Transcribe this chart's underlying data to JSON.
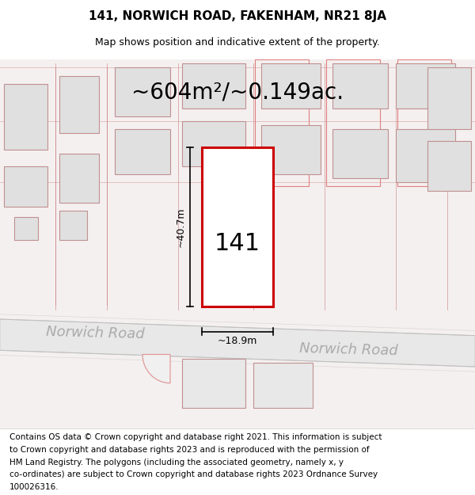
{
  "title_line1": "141, NORWICH ROAD, FAKENHAM, NR21 8JA",
  "title_line2": "Map shows position and indicative extent of the property.",
  "area_text": "~604m²/~0.149ac.",
  "property_number": "141",
  "width_label": "~18.9m",
  "height_label": "~40.7m",
  "road_label1": "Norwich Road",
  "road_label2": "Norwich Road",
  "footer_lines": [
    "Contains OS data © Crown copyright and database right 2021. This information is subject",
    "to Crown copyright and database rights 2023 and is reproduced with the permission of",
    "HM Land Registry. The polygons (including the associated geometry, namely x, y",
    "co-ordinates) are subject to Crown copyright and database rights 2023 Ordnance Survey",
    "100026316."
  ],
  "bg_color": "#f5f0f0",
  "plot_outline_color": "#cc0000",
  "plot_fill_color": "#ffffff",
  "building_fill": "#e0e0e0",
  "building_outline": "#c09090",
  "dim_line_color": "#000000",
  "text_color": "#000000",
  "road_text_color": "#aaaaaa",
  "title_fontsize": 11,
  "subtitle_fontsize": 9,
  "area_fontsize": 20,
  "property_num_fontsize": 22,
  "label_fontsize": 9,
  "road_fontsize": 13,
  "footer_fontsize": 7.5
}
